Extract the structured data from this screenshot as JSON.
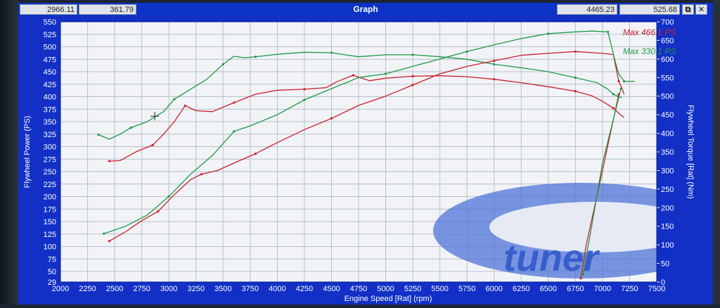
{
  "window": {
    "title": "Graph",
    "readouts": [
      "2966.11",
      "361.79",
      "4465.23",
      "525.68"
    ],
    "restore_glyph": "⧉",
    "close_glyph": "✕"
  },
  "watermark": {
    "text": "tuner"
  },
  "colors": {
    "power_red": "#c8202a",
    "power_green": "#1f9a45",
    "plot_bg": "#f1f3f7",
    "frame": "#1230c6",
    "axis_text": "#ffffff"
  },
  "chart_data": {
    "type": "line",
    "xlabel": "Engine Speed [Rat] (rpm)",
    "ylabel": "Flywheel Power (PS)",
    "y2label": "Flywheel Torque [Rat] (Nm)",
    "xlim": [
      2000,
      7500
    ],
    "ylim": [
      29,
      550
    ],
    "y2lim": [
      0,
      700
    ],
    "x_ticks": [
      2000,
      2250,
      2500,
      2750,
      3000,
      3250,
      3500,
      3750,
      4000,
      4250,
      4500,
      4750,
      5000,
      5250,
      5500,
      5750,
      6000,
      6250,
      6500,
      6750,
      7000,
      7250,
      7500
    ],
    "y_ticks": [
      "550",
      "525",
      "500",
      "475",
      "450",
      "425",
      "400",
      "375",
      "350",
      "325",
      "300",
      "275",
      "250",
      "225",
      "200",
      "175",
      "150",
      "125",
      "100",
      "75",
      "50",
      "29"
    ],
    "y2_ticks": [
      700,
      650,
      600,
      550,
      500,
      450,
      400,
      350,
      300,
      250,
      200,
      150,
      100,
      50,
      0
    ],
    "legend": [
      {
        "text": "Max 466.1 PS",
        "color": "#c8202a"
      },
      {
        "text": "Max 330.1 PS",
        "color": "#1f9a45"
      }
    ],
    "series": [
      {
        "axis": "power",
        "color": "#c8202a",
        "x": [
          2450,
          2550,
          2700,
          2850,
          2950,
          3050,
          3150,
          3250,
          3400,
          3600,
          3800,
          4000,
          4250,
          4450,
          4550,
          4700,
          4850,
          5000,
          5250,
          5500,
          5750,
          6000,
          6250,
          6500,
          6750,
          6900,
          7000,
          7100,
          7150,
          7200
        ],
        "y": [
          271,
          272,
          290,
          303,
          325,
          350,
          382,
          372,
          370,
          388,
          405,
          413,
          415,
          418,
          430,
          443,
          432,
          437,
          441,
          442,
          440,
          435,
          428,
          420,
          411,
          402,
          391,
          377,
          367,
          358
        ]
      },
      {
        "axis": "power",
        "color": "#1f9a45",
        "x": [
          2350,
          2450,
          2550,
          2650,
          2800,
          2950,
          3050,
          3200,
          3350,
          3500,
          3600,
          3700,
          3800,
          4000,
          4250,
          4500,
          4750,
          5000,
          5250,
          5500,
          5750,
          6000,
          6250,
          6500,
          6750,
          6950,
          7050,
          7100,
          7150,
          7180
        ],
        "y": [
          324,
          315,
          325,
          338,
          350,
          370,
          395,
          415,
          435,
          465,
          481,
          478,
          480,
          485,
          489,
          488,
          480,
          484,
          484,
          480,
          475,
          465,
          458,
          450,
          438,
          428,
          415,
          405,
          400,
          398
        ]
      },
      {
        "axis": "torque",
        "color": "#c8202a",
        "x": [
          2450,
          2600,
          2750,
          2900,
          3050,
          3200,
          3300,
          3450,
          3600,
          3800,
          4000,
          4250,
          4500,
          4750,
          5000,
          5250,
          5500,
          5750,
          6000,
          6250,
          6500,
          6750,
          7000,
          7100,
          7150,
          7180,
          7200
        ],
        "y": [
          110,
          135,
          165,
          190,
          235,
          275,
          290,
          300,
          320,
          345,
          375,
          410,
          440,
          475,
          500,
          530,
          560,
          580,
          595,
          610,
          615,
          620,
          615,
          612,
          540,
          520,
          505
        ]
      },
      {
        "axis": "torque",
        "color": "#1f9a45",
        "x": [
          2400,
          2600,
          2800,
          3000,
          3200,
          3400,
          3600,
          3750,
          4000,
          4250,
          4500,
          4750,
          5000,
          5250,
          5500,
          5750,
          6000,
          6250,
          6500,
          6750,
          6900,
          7050,
          7120,
          7150,
          7200,
          7300
        ],
        "y": [
          130,
          150,
          180,
          230,
          290,
          340,
          405,
          420,
          450,
          490,
          520,
          550,
          560,
          580,
          600,
          620,
          638,
          655,
          668,
          673,
          675,
          673,
          590,
          560,
          540,
          540
        ]
      },
      {
        "axis": "torque",
        "color": "#c8202a",
        "x": [
          7150,
          7000,
          6850,
          6800
        ],
        "y": [
          505,
          300,
          100,
          10
        ]
      },
      {
        "axis": "torque",
        "color": "#1f9a45",
        "x": [
          7170,
          7000,
          6900,
          6820
        ],
        "y": [
          520,
          320,
          150,
          20
        ]
      }
    ]
  }
}
